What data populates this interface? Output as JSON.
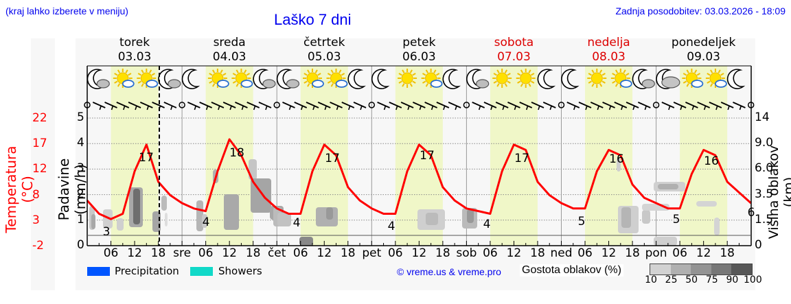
{
  "header": {
    "region_hint": "(kraj lahko izberete v meniju)",
    "title": "Laško 7 dni",
    "last_update": "Zadnja posodobitev: 03.03.2026 - 18:09"
  },
  "days": [
    {
      "name": "torek",
      "date": "03.03",
      "weekend": false
    },
    {
      "name": "sreda",
      "date": "04.03",
      "weekend": false
    },
    {
      "name": "četrtek",
      "date": "05.03",
      "weekend": false
    },
    {
      "name": "petek",
      "date": "06.03",
      "weekend": false
    },
    {
      "name": "sobota",
      "date": "07.03",
      "weekend": true
    },
    {
      "name": "nedelja",
      "date": "08.03",
      "weekend": true
    },
    {
      "name": "ponedeljek",
      "date": "09.03",
      "weekend": false
    }
  ],
  "axes": {
    "left_temp_label": "Temperatura (°C)",
    "left_temp_ticks": [
      "22",
      "17",
      "12",
      "8",
      "3",
      "-2"
    ],
    "left_precip_label": "Padavine (mm/h)",
    "left_precip_ticks": [
      "5",
      "4",
      "3",
      "2",
      "1",
      "0"
    ],
    "right_label": "Višina oblakov (km)",
    "right_ticks": [
      "14",
      "9.0",
      "6.0",
      "3.5",
      "1.5",
      "0"
    ],
    "x_ticks": [
      "06",
      "12",
      "18",
      "sre",
      "06",
      "12",
      "18",
      "čet",
      "06",
      "12",
      "18",
      "pet",
      "06",
      "12",
      "18",
      "sob",
      "06",
      "12",
      "18",
      "ned",
      "06",
      "12",
      "18",
      "pon",
      "06",
      "12",
      "18"
    ]
  },
  "legend": {
    "precipitation": {
      "label": "Precipitation",
      "color": "#0055ff"
    },
    "showers": {
      "label": "Showers",
      "color": "#11d9c8"
    },
    "copyright": "© vreme.us & vreme.pro",
    "cloud_density_label": "Gostota oblakov (%)",
    "cloud_density_ticks": [
      "10",
      "25",
      "50",
      "75",
      "90",
      "100"
    ],
    "cloud_density_colors": [
      "#d2d2d2",
      "#b0b0b0",
      "#939393",
      "#777777",
      "#575757"
    ]
  },
  "colors": {
    "temperature_line": "#ff0000",
    "daylight_band": "#f0f7c8",
    "night_band": "#f7f7f7",
    "weekend_text": "#dd0000",
    "link_blue": "#0000ee"
  },
  "icons": [
    "moon-cloud",
    "sun-cloud",
    "sun-cloud",
    "moon-cloud",
    "moon",
    "sun-cloud",
    "sun-cloud",
    "moon-cloud",
    "moon-cloud",
    "sun-cloud",
    "sun-cloud",
    "moon",
    "moon",
    "sun",
    "sun-cloud",
    "moon",
    "moon-cloud",
    "sun",
    "sun",
    "moon",
    "moon",
    "sun",
    "sun-cloud",
    "moon-cloud",
    "moon-heavy-cloud",
    "sun-cloud",
    "sun-cloud",
    "moon"
  ],
  "chart_data": {
    "type": "line",
    "title": "Laško 7 dni",
    "xlabel": "",
    "ylabel": "Temperatura (°C)",
    "ylim": [
      -2,
      22
    ],
    "grid": true,
    "series": [
      {
        "name": "Temperatura (°C)",
        "hours": [
          0,
          3,
          6,
          9,
          12,
          15,
          18,
          21,
          24,
          27,
          30,
          33,
          36,
          39,
          42,
          45,
          48,
          51,
          54,
          57,
          60,
          63,
          66,
          69,
          72,
          75,
          78,
          81,
          84,
          87,
          90,
          93,
          96,
          99,
          102,
          105,
          108,
          111,
          114,
          117,
          120,
          123,
          126,
          129,
          132,
          135,
          138,
          141,
          144,
          147,
          150,
          153,
          156,
          159,
          162,
          165,
          168
        ],
        "values": [
          6.5,
          4,
          3,
          4,
          12,
          17,
          10,
          7.5,
          6,
          5,
          4.5,
          12,
          18,
          15,
          10,
          7,
          5,
          4,
          4,
          12,
          17,
          15,
          9,
          6.5,
          5,
          4,
          4,
          12,
          17,
          15,
          9,
          6.5,
          5,
          4.5,
          4,
          12,
          17,
          16,
          10,
          7.5,
          6,
          5,
          5,
          12,
          16,
          15,
          9.5,
          7,
          6,
          5,
          5,
          11.5,
          16,
          15,
          10,
          8,
          6
        ]
      }
    ],
    "labels": [
      {
        "text": "3",
        "kind": "min"
      },
      {
        "text": "17",
        "kind": "max"
      },
      {
        "text": "4",
        "kind": "min"
      },
      {
        "text": "18",
        "kind": "max"
      },
      {
        "text": "4",
        "kind": "min"
      },
      {
        "text": "17",
        "kind": "max"
      },
      {
        "text": "4",
        "kind": "min"
      },
      {
        "text": "17",
        "kind": "max"
      },
      {
        "text": "4",
        "kind": "min"
      },
      {
        "text": "17",
        "kind": "max"
      },
      {
        "text": "5",
        "kind": "min"
      },
      {
        "text": "16",
        "kind": "max"
      },
      {
        "text": "5",
        "kind": "min"
      },
      {
        "text": "16",
        "kind": "max"
      },
      {
        "text": "6",
        "kind": "end"
      }
    ],
    "secondary_axes": {
      "precipitation_mm_h": [
        0,
        5
      ],
      "cloud_height_km": [
        "0",
        "1.5",
        "3.5",
        "6.0",
        "9.0",
        "14"
      ]
    },
    "precipitation": "none visible",
    "current_time_marker": "03.03 18:09"
  }
}
